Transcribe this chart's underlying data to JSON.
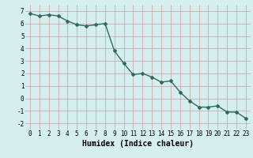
{
  "x": [
    0,
    1,
    2,
    3,
    4,
    5,
    6,
    7,
    8,
    9,
    10,
    11,
    12,
    13,
    14,
    15,
    16,
    17,
    18,
    19,
    20,
    21,
    22,
    23
  ],
  "y": [
    6.8,
    6.6,
    6.7,
    6.6,
    6.2,
    5.9,
    5.8,
    5.9,
    6.0,
    3.8,
    2.8,
    1.9,
    2.0,
    1.7,
    1.3,
    1.4,
    0.5,
    -0.2,
    -0.7,
    -0.7,
    -0.6,
    -1.1,
    -1.1,
    -1.6
  ],
  "xlabel": "Humidex (Indice chaleur)",
  "xlim": [
    -0.5,
    23.5
  ],
  "ylim": [
    -2.5,
    7.5
  ],
  "yticks": [
    -2,
    -1,
    0,
    1,
    2,
    3,
    4,
    5,
    6,
    7
  ],
  "xticks": [
    0,
    1,
    2,
    3,
    4,
    5,
    6,
    7,
    8,
    9,
    10,
    11,
    12,
    13,
    14,
    15,
    16,
    17,
    18,
    19,
    20,
    21,
    22,
    23
  ],
  "line_color": "#2d6b5e",
  "marker_color": "#2d6b5e",
  "bg_color": "#d5eeee",
  "grid_color_major": "#c8a0a0",
  "grid_color_minor": "#c8a0a0",
  "marker": "D",
  "marker_size": 2.0,
  "linewidth": 1.0,
  "tick_fontsize": 5.5,
  "xlabel_fontsize": 7.0
}
